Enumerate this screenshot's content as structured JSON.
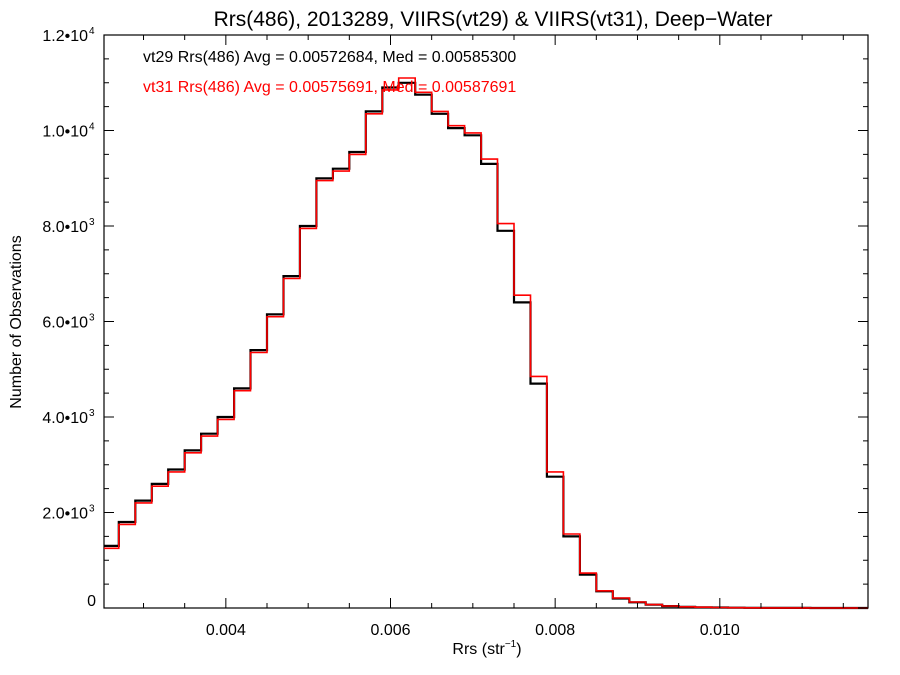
{
  "chart_data": {
    "type": "line",
    "title": "Rrs(486), 2013289, VIIRS(vt29) & VIIRS(vt31), Deep−Water",
    "xlabel_main": "Rrs (str",
    "xlabel_sup": "−1",
    "xlabel_end": ")",
    "ylabel": "Number of Observations",
    "xlim": [
      0.00252,
      0.0118
    ],
    "ylim": [
      0,
      12000
    ],
    "x_ticks": [
      {
        "value": 0.004,
        "label": "0.004"
      },
      {
        "value": 0.006,
        "label": "0.006"
      },
      {
        "value": 0.008,
        "label": "0.008"
      },
      {
        "value": 0.01,
        "label": "0.010"
      }
    ],
    "y_ticks": [
      {
        "value": 0,
        "mant": "0",
        "exp": ""
      },
      {
        "value": 2000,
        "mant": "2.0•10",
        "exp": "3"
      },
      {
        "value": 4000,
        "mant": "4.0•10",
        "exp": "3"
      },
      {
        "value": 6000,
        "mant": "6.0•10",
        "exp": "3"
      },
      {
        "value": 8000,
        "mant": "8.0•10",
        "exp": "3"
      },
      {
        "value": 10000,
        "mant": "1.0•10",
        "exp": "4"
      },
      {
        "value": 12000,
        "mant": "1.2•10",
        "exp": "4"
      }
    ],
    "annotations": [
      {
        "text": "vt29 Rrs(486) Avg = 0.00572684, Med = 0.00585300",
        "color": "#000000"
      },
      {
        "text": "vt31 Rrs(486) Avg = 0.00575691, Med = 0.00587691",
        "color": "#ff0000"
      }
    ],
    "series": [
      {
        "color": "#000000",
        "x": [
          0.00252,
          0.0027,
          0.0029,
          0.0031,
          0.0033,
          0.0035,
          0.0037,
          0.0039,
          0.0041,
          0.0043,
          0.0045,
          0.0047,
          0.0049,
          0.0051,
          0.0053,
          0.0055,
          0.0057,
          0.0059,
          0.0061,
          0.0063,
          0.0065,
          0.0067,
          0.0069,
          0.0071,
          0.0073,
          0.0075,
          0.0077,
          0.0079,
          0.0081,
          0.0083,
          0.0085,
          0.0087,
          0.0089,
          0.0091,
          0.0093,
          0.0095,
          0.0097,
          0.0099,
          0.0101,
          0.0103,
          0.0105,
          0.0107,
          0.0109,
          0.0111,
          0.0113,
          0.0115,
          0.0118
        ],
        "y": [
          1300,
          1800,
          2250,
          2600,
          2900,
          3300,
          3650,
          4000,
          4600,
          5400,
          6150,
          6950,
          8000,
          9000,
          9200,
          9550,
          10400,
          10900,
          11000,
          10750,
          10350,
          10050,
          9900,
          9300,
          7900,
          6400,
          4700,
          2750,
          1500,
          700,
          350,
          200,
          120,
          70,
          40,
          25,
          15,
          10,
          6,
          4,
          3,
          2,
          2,
          1,
          1,
          1,
          1
        ]
      },
      {
        "color": "#ff0000",
        "x": [
          0.00252,
          0.0027,
          0.0029,
          0.0031,
          0.0033,
          0.0035,
          0.0037,
          0.0039,
          0.0041,
          0.0043,
          0.0045,
          0.0047,
          0.0049,
          0.0051,
          0.0053,
          0.0055,
          0.0057,
          0.0059,
          0.0061,
          0.0063,
          0.0065,
          0.0067,
          0.0069,
          0.0071,
          0.0073,
          0.0075,
          0.0077,
          0.0079,
          0.0081,
          0.0083,
          0.0085,
          0.0087,
          0.0089,
          0.0091,
          0.0093,
          0.0095,
          0.0097,
          0.0099,
          0.0101,
          0.0103,
          0.0105,
          0.0107,
          0.0109,
          0.0111,
          0.0113,
          0.0115,
          0.0118
        ],
        "y": [
          1250,
          1750,
          2200,
          2550,
          2850,
          3250,
          3600,
          3950,
          4550,
          5350,
          6100,
          6900,
          7950,
          8950,
          9150,
          9500,
          10350,
          10850,
          11100,
          10800,
          10400,
          10100,
          9950,
          9400,
          8050,
          6550,
          4850,
          2850,
          1550,
          730,
          360,
          210,
          125,
          72,
          42,
          26,
          16,
          10,
          6,
          4,
          3,
          2,
          2,
          1,
          1,
          1,
          1
        ]
      }
    ],
    "grid": false,
    "legend": "none"
  }
}
